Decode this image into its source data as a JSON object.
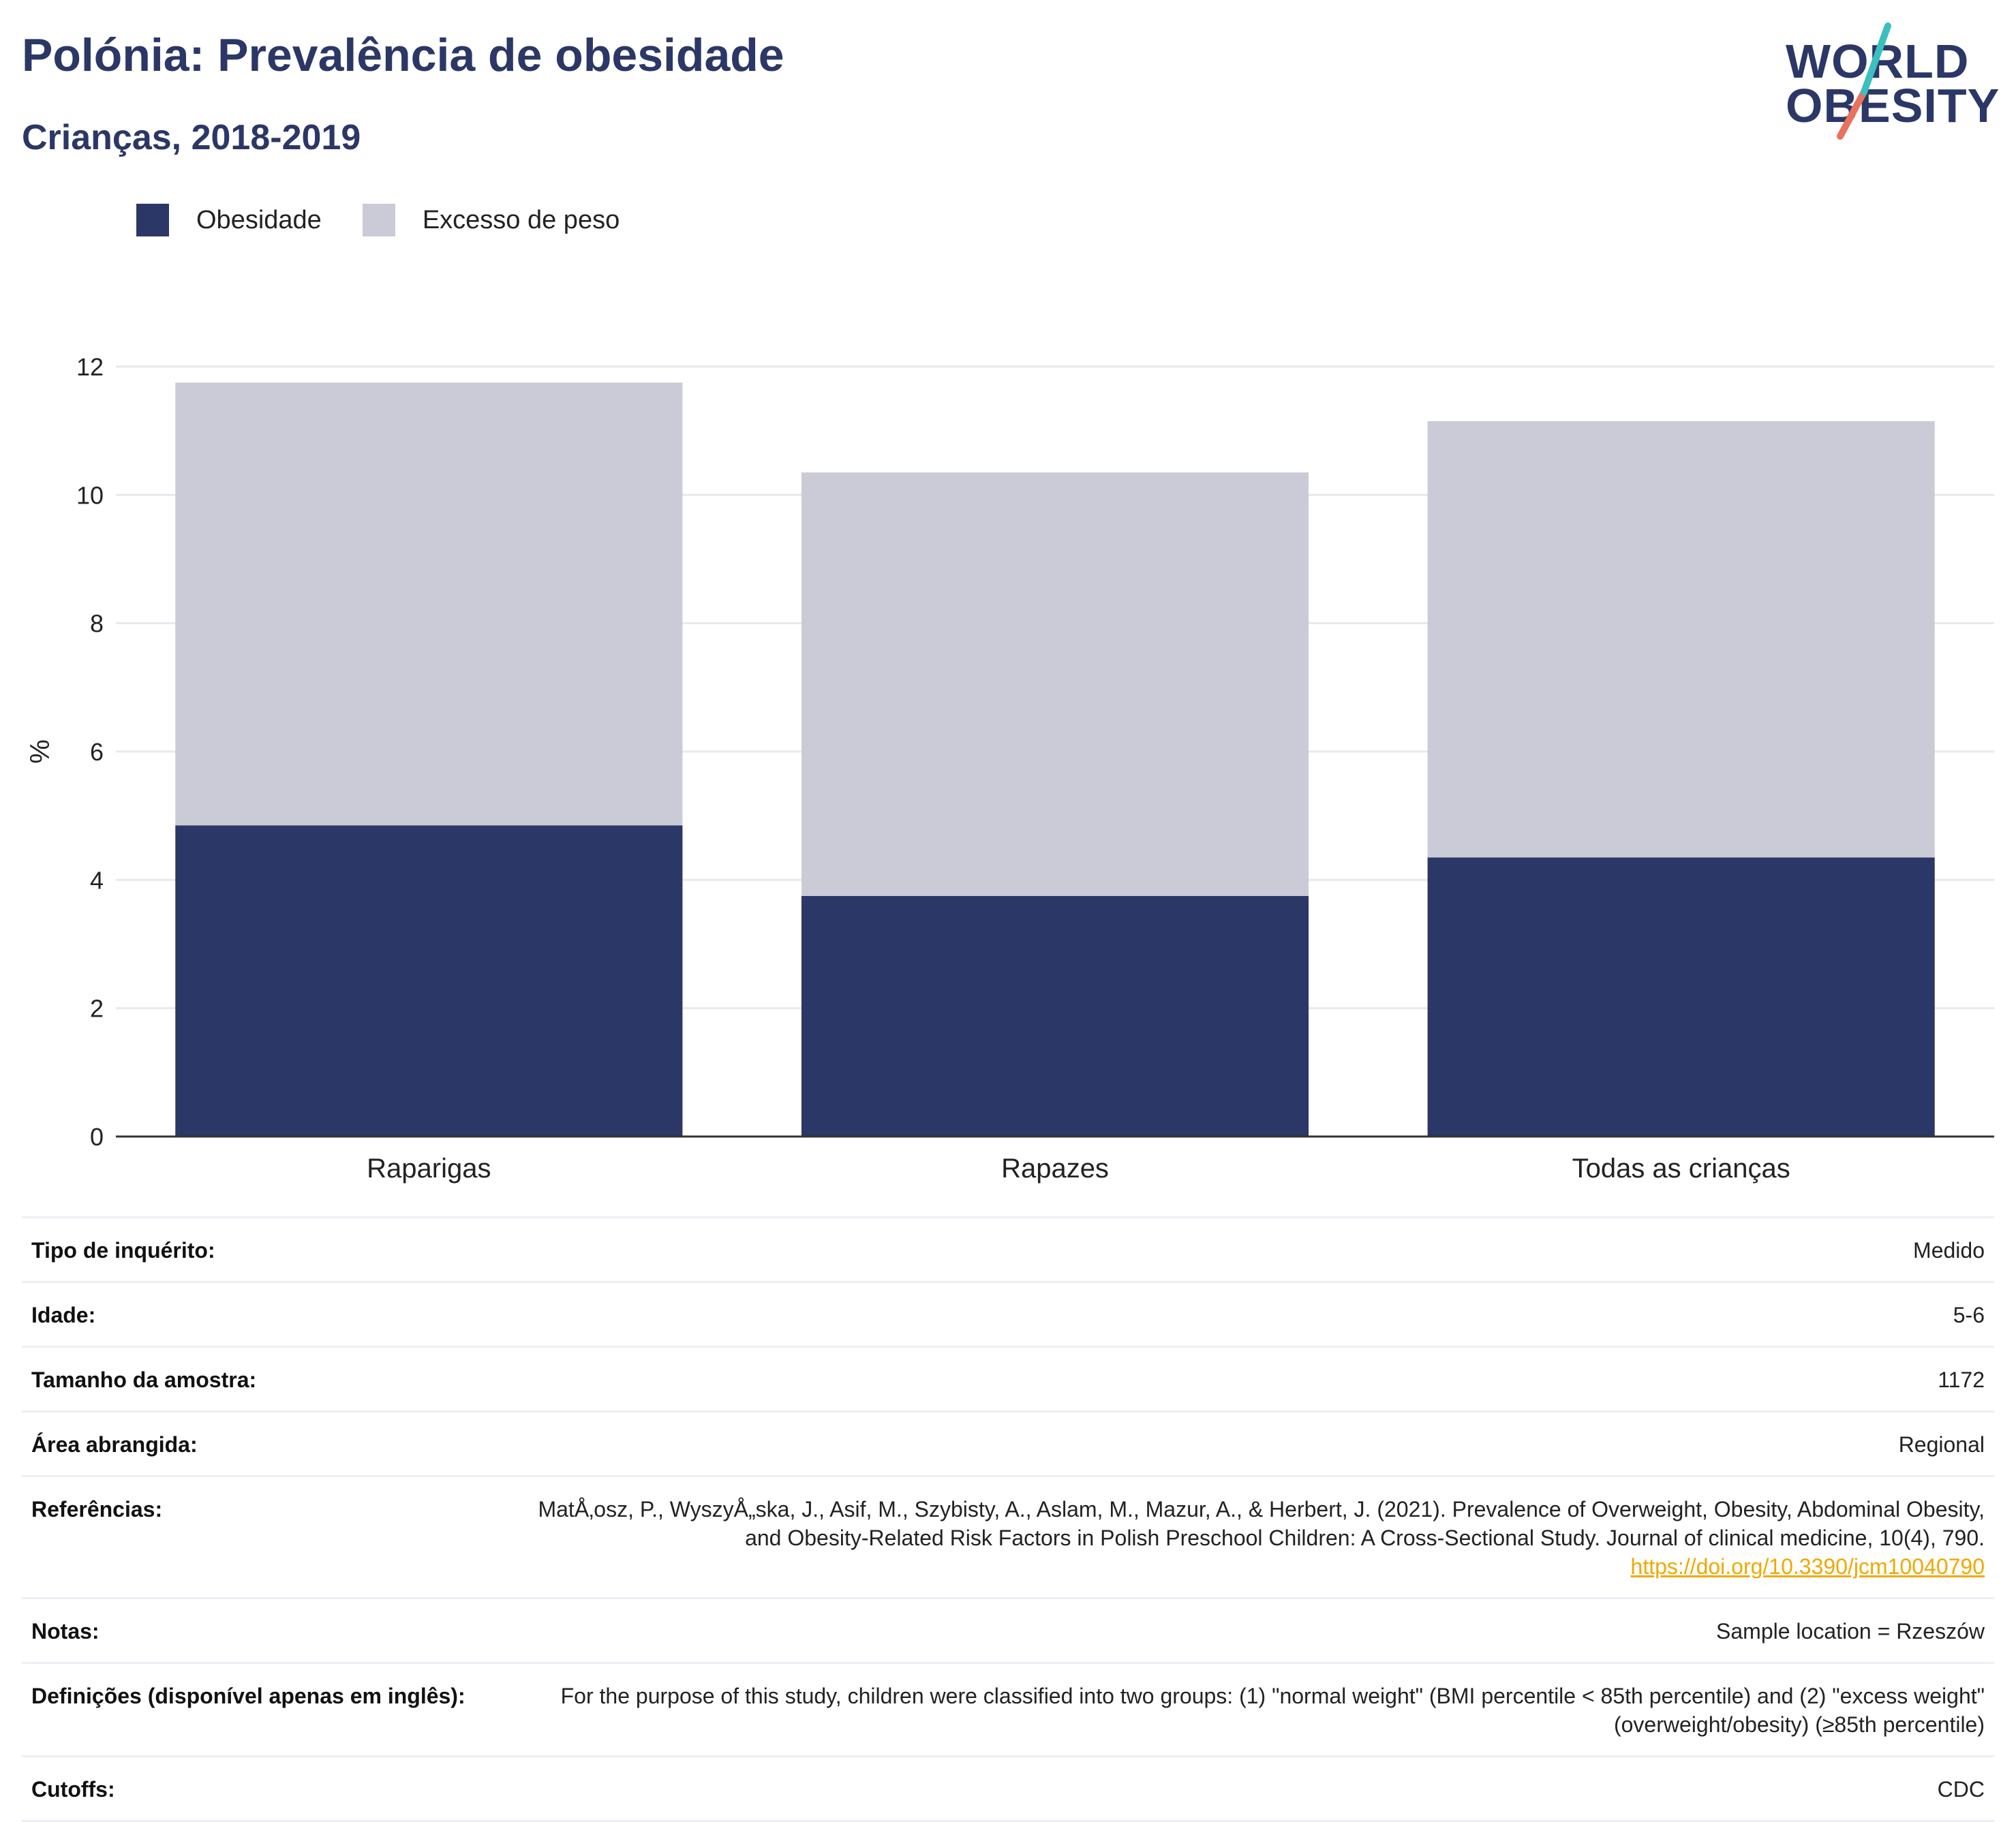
{
  "header": {
    "title": "Polónia: Prevalência de obesidade",
    "subtitle": "Crianças, 2018-2019"
  },
  "logo": {
    "line1": "WORLD",
    "line2": "OBESITY",
    "colors": {
      "text": "#2b3766",
      "teal": "#3bbfbf",
      "coral": "#e8725c"
    }
  },
  "legend": {
    "items": [
      {
        "label": "Obesidade",
        "color": "#2b3766"
      },
      {
        "label": "Excesso de peso",
        "color": "#cacbd7"
      }
    ]
  },
  "chart_data": {
    "type": "bar",
    "stacked": true,
    "categories": [
      "Raparigas",
      "Rapazes",
      "Todas as crianças"
    ],
    "series": [
      {
        "name": "Obesidade",
        "values": [
          4.85,
          3.75,
          4.35
        ],
        "color": "#2b3766"
      },
      {
        "name": "Excesso de peso",
        "values": [
          6.9,
          6.6,
          6.8
        ],
        "color": "#cacbd7"
      }
    ],
    "ylabel": "%",
    "ylim": [
      0,
      12
    ],
    "yticks": [
      0,
      2,
      4,
      6,
      8,
      10,
      12
    ],
    "grid": true,
    "legend_position": "top-left"
  },
  "info": {
    "rows": [
      {
        "label": "Tipo de inquérito:",
        "value": "Medido"
      },
      {
        "label": "Idade:",
        "value": "5-6"
      },
      {
        "label": "Tamanho da amostra:",
        "value": "1172"
      },
      {
        "label": "Área abrangida:",
        "value": "Regional"
      },
      {
        "label": "Referências:",
        "value": "MatÅ‚osz, P., WyszyÅ„ska, J., Asif, M., Szybisty, A., Aslam, M., Mazur, A., & Herbert, J. (2021). Prevalence of Overweight, Obesity, Abdominal Obesity, and Obesity-Related Risk Factors in Polish Preschool Children: A Cross-Sectional Study. Journal of clinical medicine, 10(4), 790.",
        "link": "https://doi.org/10.3390/jcm10040790"
      },
      {
        "label": "Notas:",
        "value": "Sample location = Rzeszów"
      },
      {
        "label": "Definições (disponível apenas em inglês):",
        "value": "For the purpose of this study, children were classified into two groups: (1) \"normal weight\" (BMI percentile < 85th percentile) and (2) \"excess weight\" (overweight/obesity) (≥85th percentile)"
      },
      {
        "label": "Cutoffs:",
        "value": "CDC"
      }
    ]
  }
}
